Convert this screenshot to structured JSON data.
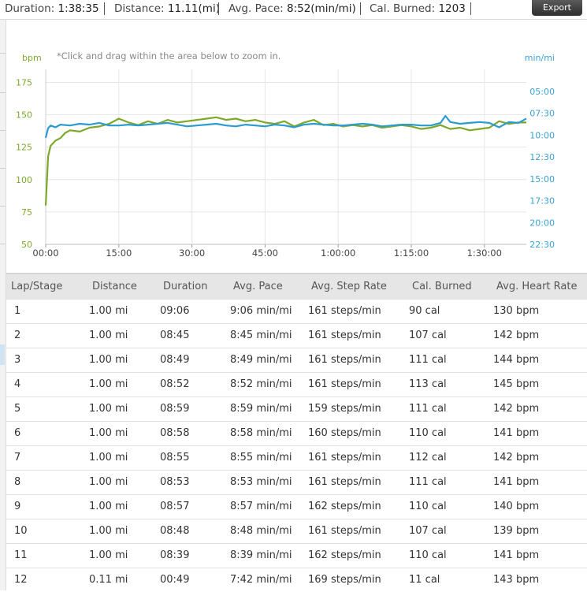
{
  "summary": {
    "duration_label": "Duration:",
    "duration_value": "1:38:35",
    "distance_label": "Distance:",
    "distance_value": "11.11(mi)",
    "pace_label": "Avg. Pace:",
    "pace_value": "8:52(min/mi)",
    "cal_label": "Cal. Burned:",
    "cal_value": "1203"
  },
  "export_label": "Export",
  "colors": {
    "heart_rate": "#7ea82a",
    "pace": "#2b9bd0",
    "grid": "#e6e6e6",
    "left_axis_text": "#7ea82a",
    "right_axis_text": "#3aa3d6"
  },
  "chart_data": {
    "type": "line",
    "hint": "*Click and drag within the area below to zoom in.",
    "left_unit": "bpm",
    "right_unit": "min/mi",
    "x_ticks": [
      "00:00",
      "15:00",
      "30:00",
      "45:00",
      "1:00:00",
      "1:15:00",
      "1:30:00"
    ],
    "x_tick_minutes": [
      0,
      15,
      30,
      45,
      60,
      75,
      90
    ],
    "xlim_minutes": [
      0,
      98.6
    ],
    "left_ticks": [
      "175",
      "150",
      "125",
      "100",
      "75",
      "50"
    ],
    "left_tick_values": [
      175,
      150,
      125,
      100,
      75,
      50
    ],
    "ylim_left": [
      50,
      185
    ],
    "right_ticks": [
      "05:00",
      "07:30",
      "10:00",
      "12:30",
      "15:00",
      "17:30",
      "20:00",
      "22:30"
    ],
    "right_tick_minutes": [
      5,
      7.5,
      10,
      12.5,
      15,
      17.5,
      20,
      22.5
    ],
    "ylim_right_min_per_mi": [
      5,
      22.5
    ],
    "grid": true,
    "series": [
      {
        "axis": "left",
        "x": [
          0,
          0.5,
          1,
          1.5,
          2,
          3,
          4,
          5,
          7,
          9,
          11,
          13,
          15,
          17,
          19,
          21,
          23,
          25,
          27,
          29,
          31,
          33,
          35,
          37,
          39,
          41,
          43,
          45,
          47,
          49,
          51,
          53,
          55,
          57,
          59,
          61,
          63,
          65,
          67,
          69,
          71,
          73,
          75,
          77,
          79,
          81,
          83,
          85,
          87,
          89,
          91,
          93,
          95,
          97,
          98.6
        ],
        "y": [
          80,
          118,
          126,
          128,
          130,
          132,
          136,
          138,
          137,
          140,
          141,
          143,
          147,
          144,
          142,
          145,
          143,
          146,
          144,
          145,
          146,
          147,
          148,
          146,
          147,
          145,
          146,
          144,
          143,
          145,
          141,
          144,
          146,
          142,
          143,
          141,
          142,
          141,
          142,
          140,
          141,
          142,
          141,
          139,
          140,
          142,
          139,
          140,
          138,
          139,
          140,
          145,
          143,
          144,
          144
        ]
      },
      {
        "axis": "right",
        "x": [
          0,
          0.5,
          1,
          2,
          3,
          5,
          7,
          9,
          11,
          13,
          15,
          17,
          19,
          21,
          23,
          25,
          27,
          29,
          31,
          33,
          35,
          37,
          39,
          41,
          43,
          45,
          47,
          49,
          51,
          53,
          55,
          57,
          59,
          61,
          63,
          65,
          67,
          69,
          71,
          73,
          75,
          77,
          79,
          81,
          82,
          83,
          85,
          87,
          89,
          91,
          93,
          95,
          97,
          98.6
        ],
        "y": [
          10.3,
          9.2,
          8.9,
          9.1,
          8.8,
          8.9,
          8.7,
          8.8,
          8.6,
          8.9,
          8.9,
          8.8,
          8.9,
          8.8,
          8.7,
          8.6,
          8.8,
          9.0,
          8.9,
          8.8,
          8.7,
          8.9,
          9.0,
          8.8,
          8.9,
          9.0,
          8.8,
          8.9,
          9.1,
          8.8,
          8.7,
          8.8,
          8.9,
          8.9,
          8.8,
          8.7,
          8.8,
          9.0,
          8.9,
          8.8,
          8.8,
          8.9,
          8.9,
          8.6,
          7.8,
          8.5,
          8.7,
          8.6,
          8.5,
          8.6,
          9.1,
          8.5,
          8.6,
          8.1
        ]
      }
    ]
  },
  "table": {
    "headers": [
      "Lap/Stage",
      "Distance",
      "Duration",
      "Avg. Pace",
      "Avg. Step Rate",
      "Cal. Burned",
      "Avg. Heart Rate"
    ],
    "rows": [
      [
        "1",
        "1.00 mi",
        "09:06",
        "9:06 min/mi",
        "161 steps/min",
        "90 cal",
        "130 bpm"
      ],
      [
        "2",
        "1.00 mi",
        "08:45",
        "8:45 min/mi",
        "161 steps/min",
        "107 cal",
        "142 bpm"
      ],
      [
        "3",
        "1.00 mi",
        "08:49",
        "8:49 min/mi",
        "161 steps/min",
        "111 cal",
        "144 bpm"
      ],
      [
        "4",
        "1.00 mi",
        "08:52",
        "8:52 min/mi",
        "161 steps/min",
        "113 cal",
        "145 bpm"
      ],
      [
        "5",
        "1.00 mi",
        "08:59",
        "8:59 min/mi",
        "159 steps/min",
        "111 cal",
        "142 bpm"
      ],
      [
        "6",
        "1.00 mi",
        "08:58",
        "8:58 min/mi",
        "160 steps/min",
        "110 cal",
        "141 bpm"
      ],
      [
        "7",
        "1.00 mi",
        "08:55",
        "8:55 min/mi",
        "161 steps/min",
        "112 cal",
        "142 bpm"
      ],
      [
        "8",
        "1.00 mi",
        "08:53",
        "8:53 min/mi",
        "161 steps/min",
        "111 cal",
        "141 bpm"
      ],
      [
        "9",
        "1.00 mi",
        "08:57",
        "8:57 min/mi",
        "162 steps/min",
        "110 cal",
        "140 bpm"
      ],
      [
        "10",
        "1.00 mi",
        "08:48",
        "8:48 min/mi",
        "161 steps/min",
        "107 cal",
        "139 bpm"
      ],
      [
        "11",
        "1.00 mi",
        "08:39",
        "8:39 min/mi",
        "162 steps/min",
        "110 cal",
        "141 bpm"
      ],
      [
        "12",
        "0.11 mi",
        "00:49",
        "7:42 min/mi",
        "169 steps/min",
        "11 cal",
        "143 bpm"
      ]
    ]
  }
}
